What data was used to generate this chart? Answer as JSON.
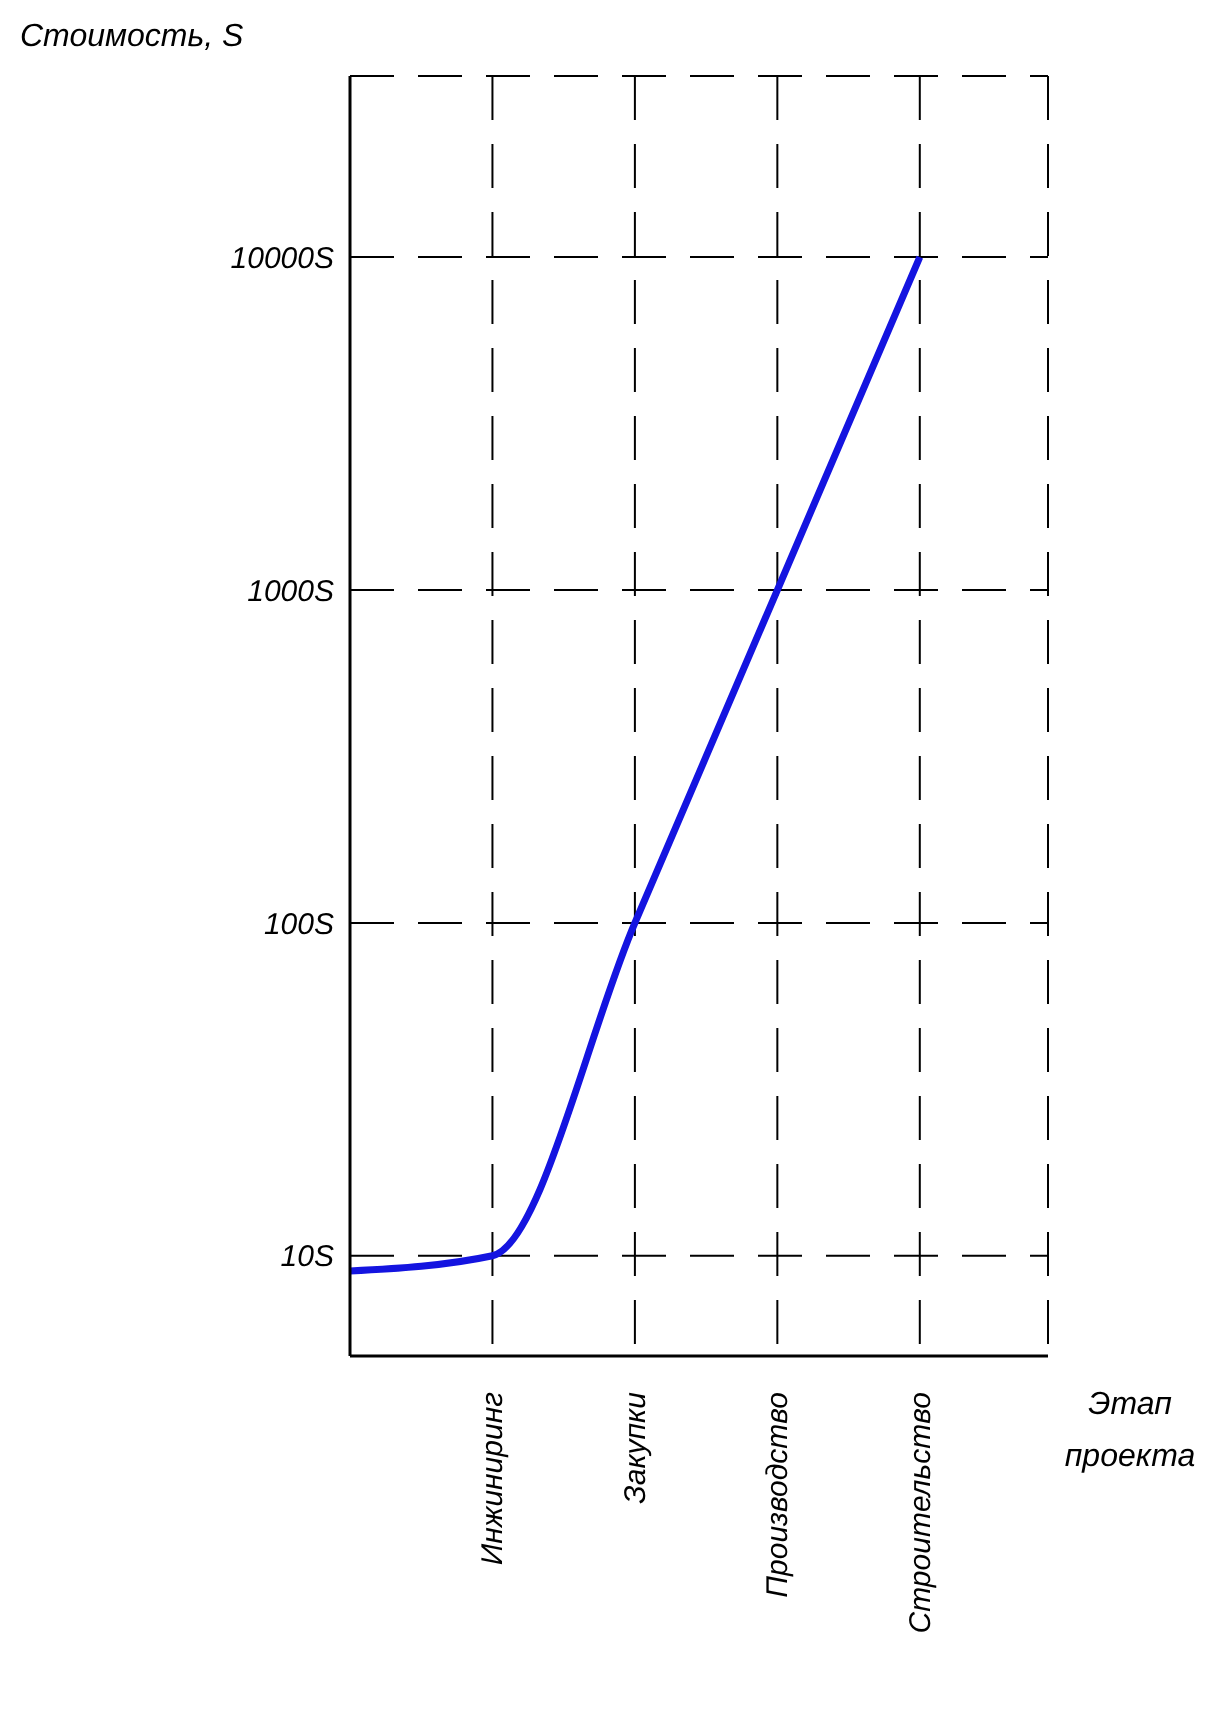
{
  "chart_data": {
    "type": "line",
    "xlabel": "Этап проекта",
    "ylabel": "Стоимость, S",
    "categories": [
      null,
      "Инжиниринг",
      "Закупки",
      "Производство",
      "Строительство"
    ],
    "series": [
      {
        "color": "#1414e0",
        "values": [
          9,
          10,
          100,
          1000,
          10000
        ]
      }
    ],
    "log": "y",
    "ylim": [
      5,
      35000
    ],
    "yticks": [
      {
        "value": 10,
        "label": "10S"
      },
      {
        "value": 100,
        "label": "100S"
      },
      {
        "value": 1000,
        "label": "1000S"
      },
      {
        "value": 10000,
        "label": "10000S"
      }
    ],
    "grid": true,
    "marker": "none",
    "line_style": "solid"
  }
}
